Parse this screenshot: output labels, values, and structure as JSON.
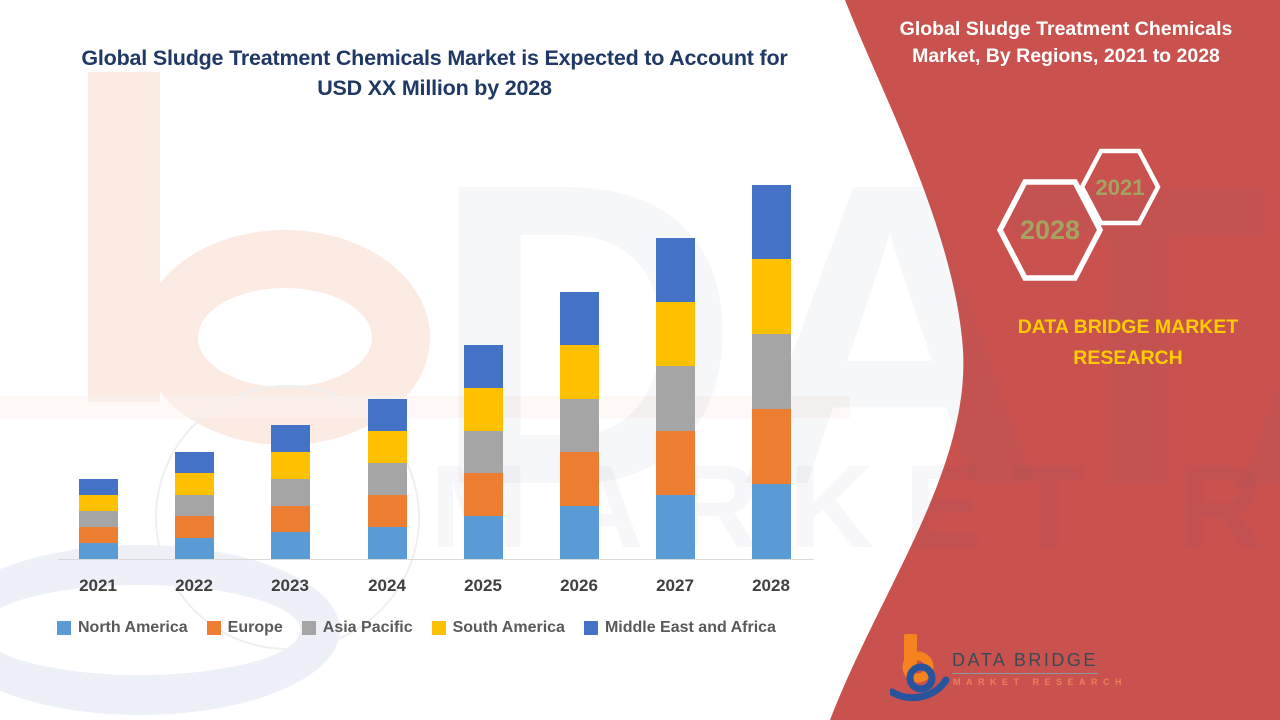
{
  "page": {
    "left": {
      "title_line1": "Global Sludge Treatment Chemicals Market is Expected to Account for",
      "title_line2": "USD XX Million by 2028"
    },
    "right": {
      "title_line1": "Global Sludge Treatment Chemicals",
      "title_line2": "Market, By Regions, 2021 to 2028",
      "hexagon_top_year": "2021",
      "hexagon_bottom_year": "2028",
      "brand_text": "DATA BRIDGE MARKET RESEARCH",
      "logo_name": "DATA BRIDGE",
      "logo_tagline": "MARKET RESEARCH"
    },
    "watermark": {
      "line1": "DATA BRI",
      "line2": "MARKET RESEARCH"
    }
  },
  "colors": {
    "panel_red": "#C9514E",
    "title_navy": "#1F3864",
    "brand_gold": "#FFCD00",
    "hex_year_text": "#A6A35F",
    "axis_label": "#404040",
    "legend_text": "#595959",
    "axis_line": "#D9D9D9",
    "logo_orange": "#F5831F",
    "logo_blue": "#27549D",
    "logo_dark": "#3B4A54"
  },
  "chart_data": {
    "type": "bar",
    "stacked": true,
    "title": "Global Sludge Treatment Chemicals Market is Expected to Account for USD XX Million by 2028",
    "xlabel": "",
    "ylabel": "",
    "grid": false,
    "legend_position": "bottom",
    "y_axis_shown": false,
    "value_units": "relative (no axis values shown; market sized as USD XX Million)",
    "categories": [
      "2021",
      "2022",
      "2023",
      "2024",
      "2025",
      "2026",
      "2027",
      "2028"
    ],
    "series": [
      {
        "name": "North America",
        "color": "#5B9BD5",
        "values": [
          3,
          4,
          5,
          6,
          8,
          10,
          12,
          14
        ]
      },
      {
        "name": "Europe",
        "color": "#ED7D31",
        "values": [
          3,
          4,
          5,
          6,
          8,
          10,
          12,
          14
        ]
      },
      {
        "name": "Asia Pacific",
        "color": "#A5A5A5",
        "values": [
          3,
          4,
          5,
          6,
          8,
          10,
          12,
          14
        ]
      },
      {
        "name": "South America",
        "color": "#FFC000",
        "values": [
          3,
          4,
          5,
          6,
          8,
          10,
          12,
          14
        ]
      },
      {
        "name": "Middle East and Africa",
        "color": "#4472C4",
        "values": [
          3,
          4,
          5,
          6,
          8,
          10,
          12,
          14
        ]
      }
    ],
    "totals": [
      15,
      20,
      25,
      30,
      40,
      50,
      60,
      70
    ]
  }
}
